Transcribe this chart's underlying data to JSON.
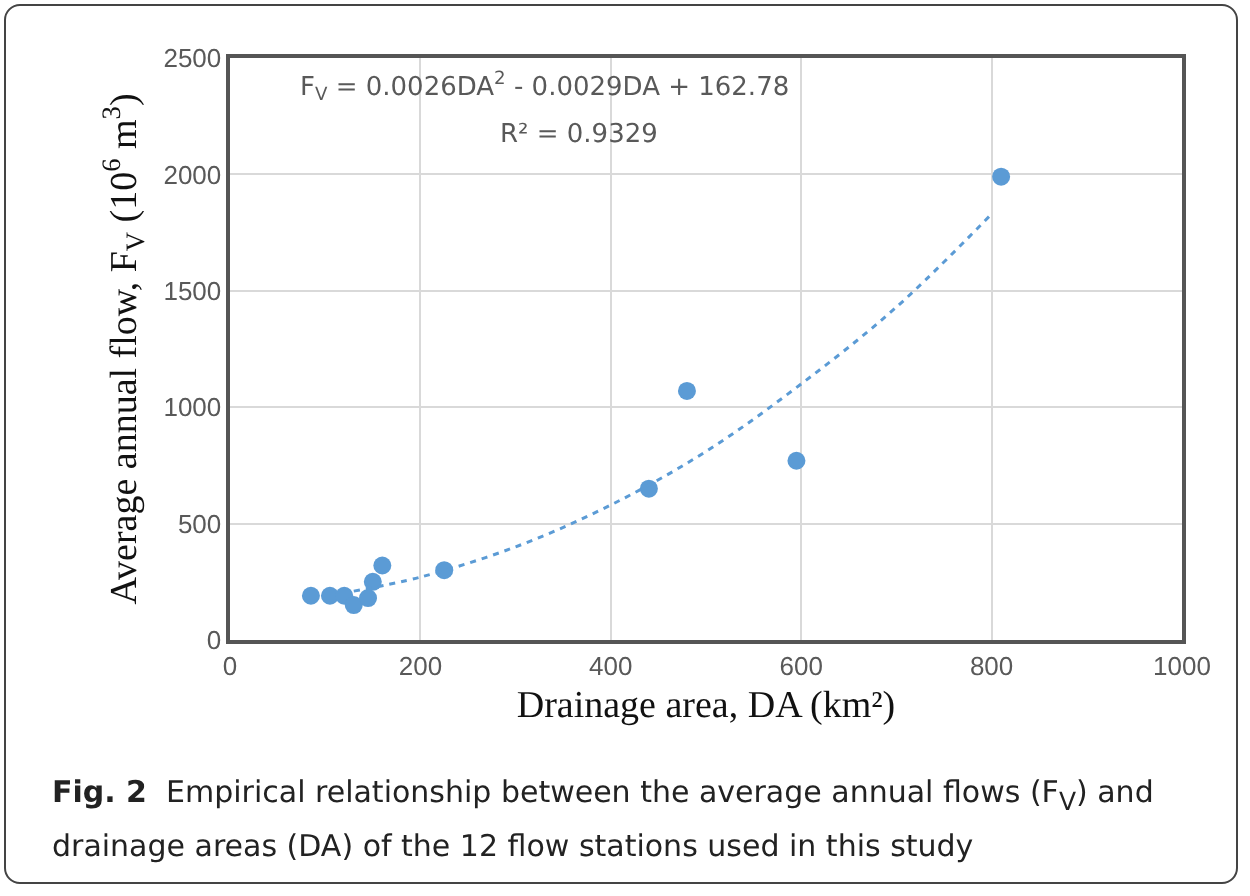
{
  "chart_data": {
    "type": "scatter",
    "xlabel": "Drainage area, DA (km²)",
    "ylabel": "Average annual flow, F$_{V}$ (10$^{6}$ m$^{3}$)",
    "series": [
      {
        "color": "#5b9bd5",
        "marker": "circle",
        "x": [
          85,
          105,
          120,
          130,
          145,
          150,
          160,
          225,
          440,
          480,
          595,
          810
        ],
        "values": [
          190,
          190,
          190,
          150,
          180,
          250,
          320,
          300,
          650,
          1070,
          770,
          1990
        ]
      },
      {
        "type": "line",
        "color": "#5b9bd5",
        "marker": "none",
        "line_style": "dotted",
        "x": [
          130,
          200,
          300,
          400,
          500,
          600,
          700,
          800
        ],
        "values": [
          210,
          270,
          400,
          580,
          810,
          1100,
          1430,
          1830
        ]
      }
    ],
    "xlim": [
      0,
      1000
    ],
    "xticks": [
      0,
      200,
      400,
      600,
      800,
      1000
    ],
    "ylim": [
      0,
      2500
    ],
    "yticks": [
      0,
      500,
      1000,
      1500,
      2000,
      2500
    ],
    "grid": true,
    "annotations": [
      "F$_{V}$ = 0.0026DA$^{2}$ - 0.0029DA + 162.78",
      "R² = 0.9329",
      "Fig. 2  Empirical relationship between the average annual flows (F$_{V}$) and drainage areas (DA) of the 12 flow stations used in this study"
    ]
  }
}
